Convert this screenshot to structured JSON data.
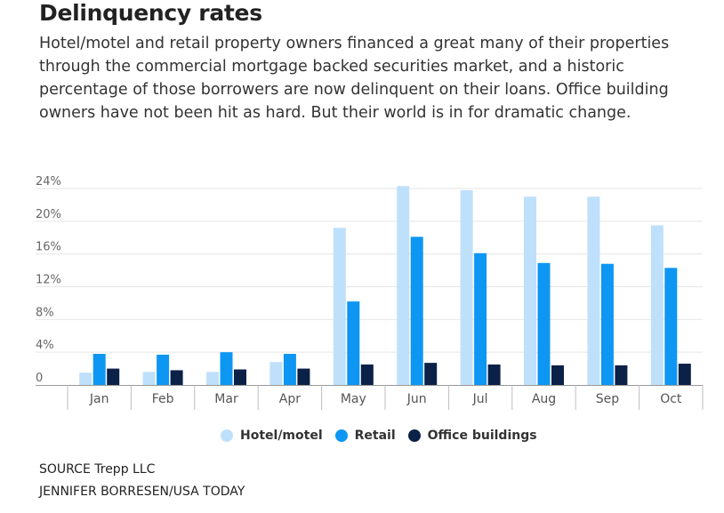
{
  "title": "Delinquency rates",
  "subtitle": "Hotel/motel and retail property owners financed a great many of their properties through the commercial mortgage backed securities market, and a historic percentage of those borrowers are now delinquent on their loans. Office building owners have not been hit as hard. But their world is in for dramatic change.",
  "chart_data": {
    "type": "bar",
    "categories": [
      "Jan",
      "Feb",
      "Mar",
      "Apr",
      "May",
      "Jun",
      "Jul",
      "Aug",
      "Sep",
      "Oct"
    ],
    "series": [
      {
        "name": "Hotel/motel",
        "color": "#bfe0fb",
        "values": [
          1.5,
          1.6,
          1.6,
          2.8,
          19.2,
          24.3,
          23.8,
          23.0,
          23.0,
          19.5
        ]
      },
      {
        "name": "Retail",
        "color": "#0d97f3",
        "values": [
          3.8,
          3.7,
          4.0,
          3.8,
          10.2,
          18.1,
          16.1,
          14.9,
          14.8,
          14.3
        ]
      },
      {
        "name": "Office buildings",
        "color": "#0c2148",
        "values": [
          2.0,
          1.8,
          1.9,
          2.0,
          2.5,
          2.7,
          2.5,
          2.4,
          2.4,
          2.6
        ]
      }
    ],
    "yticks": [
      "0",
      "4%",
      "8%",
      "12%",
      "16%",
      "20%",
      "24%"
    ],
    "ylim": [
      0,
      24
    ],
    "grid": true,
    "legend_position": "bottom"
  },
  "footer": {
    "source": "SOURCE Trepp LLC",
    "credit": "JENNIFER BORRESEN/USA TODAY"
  }
}
